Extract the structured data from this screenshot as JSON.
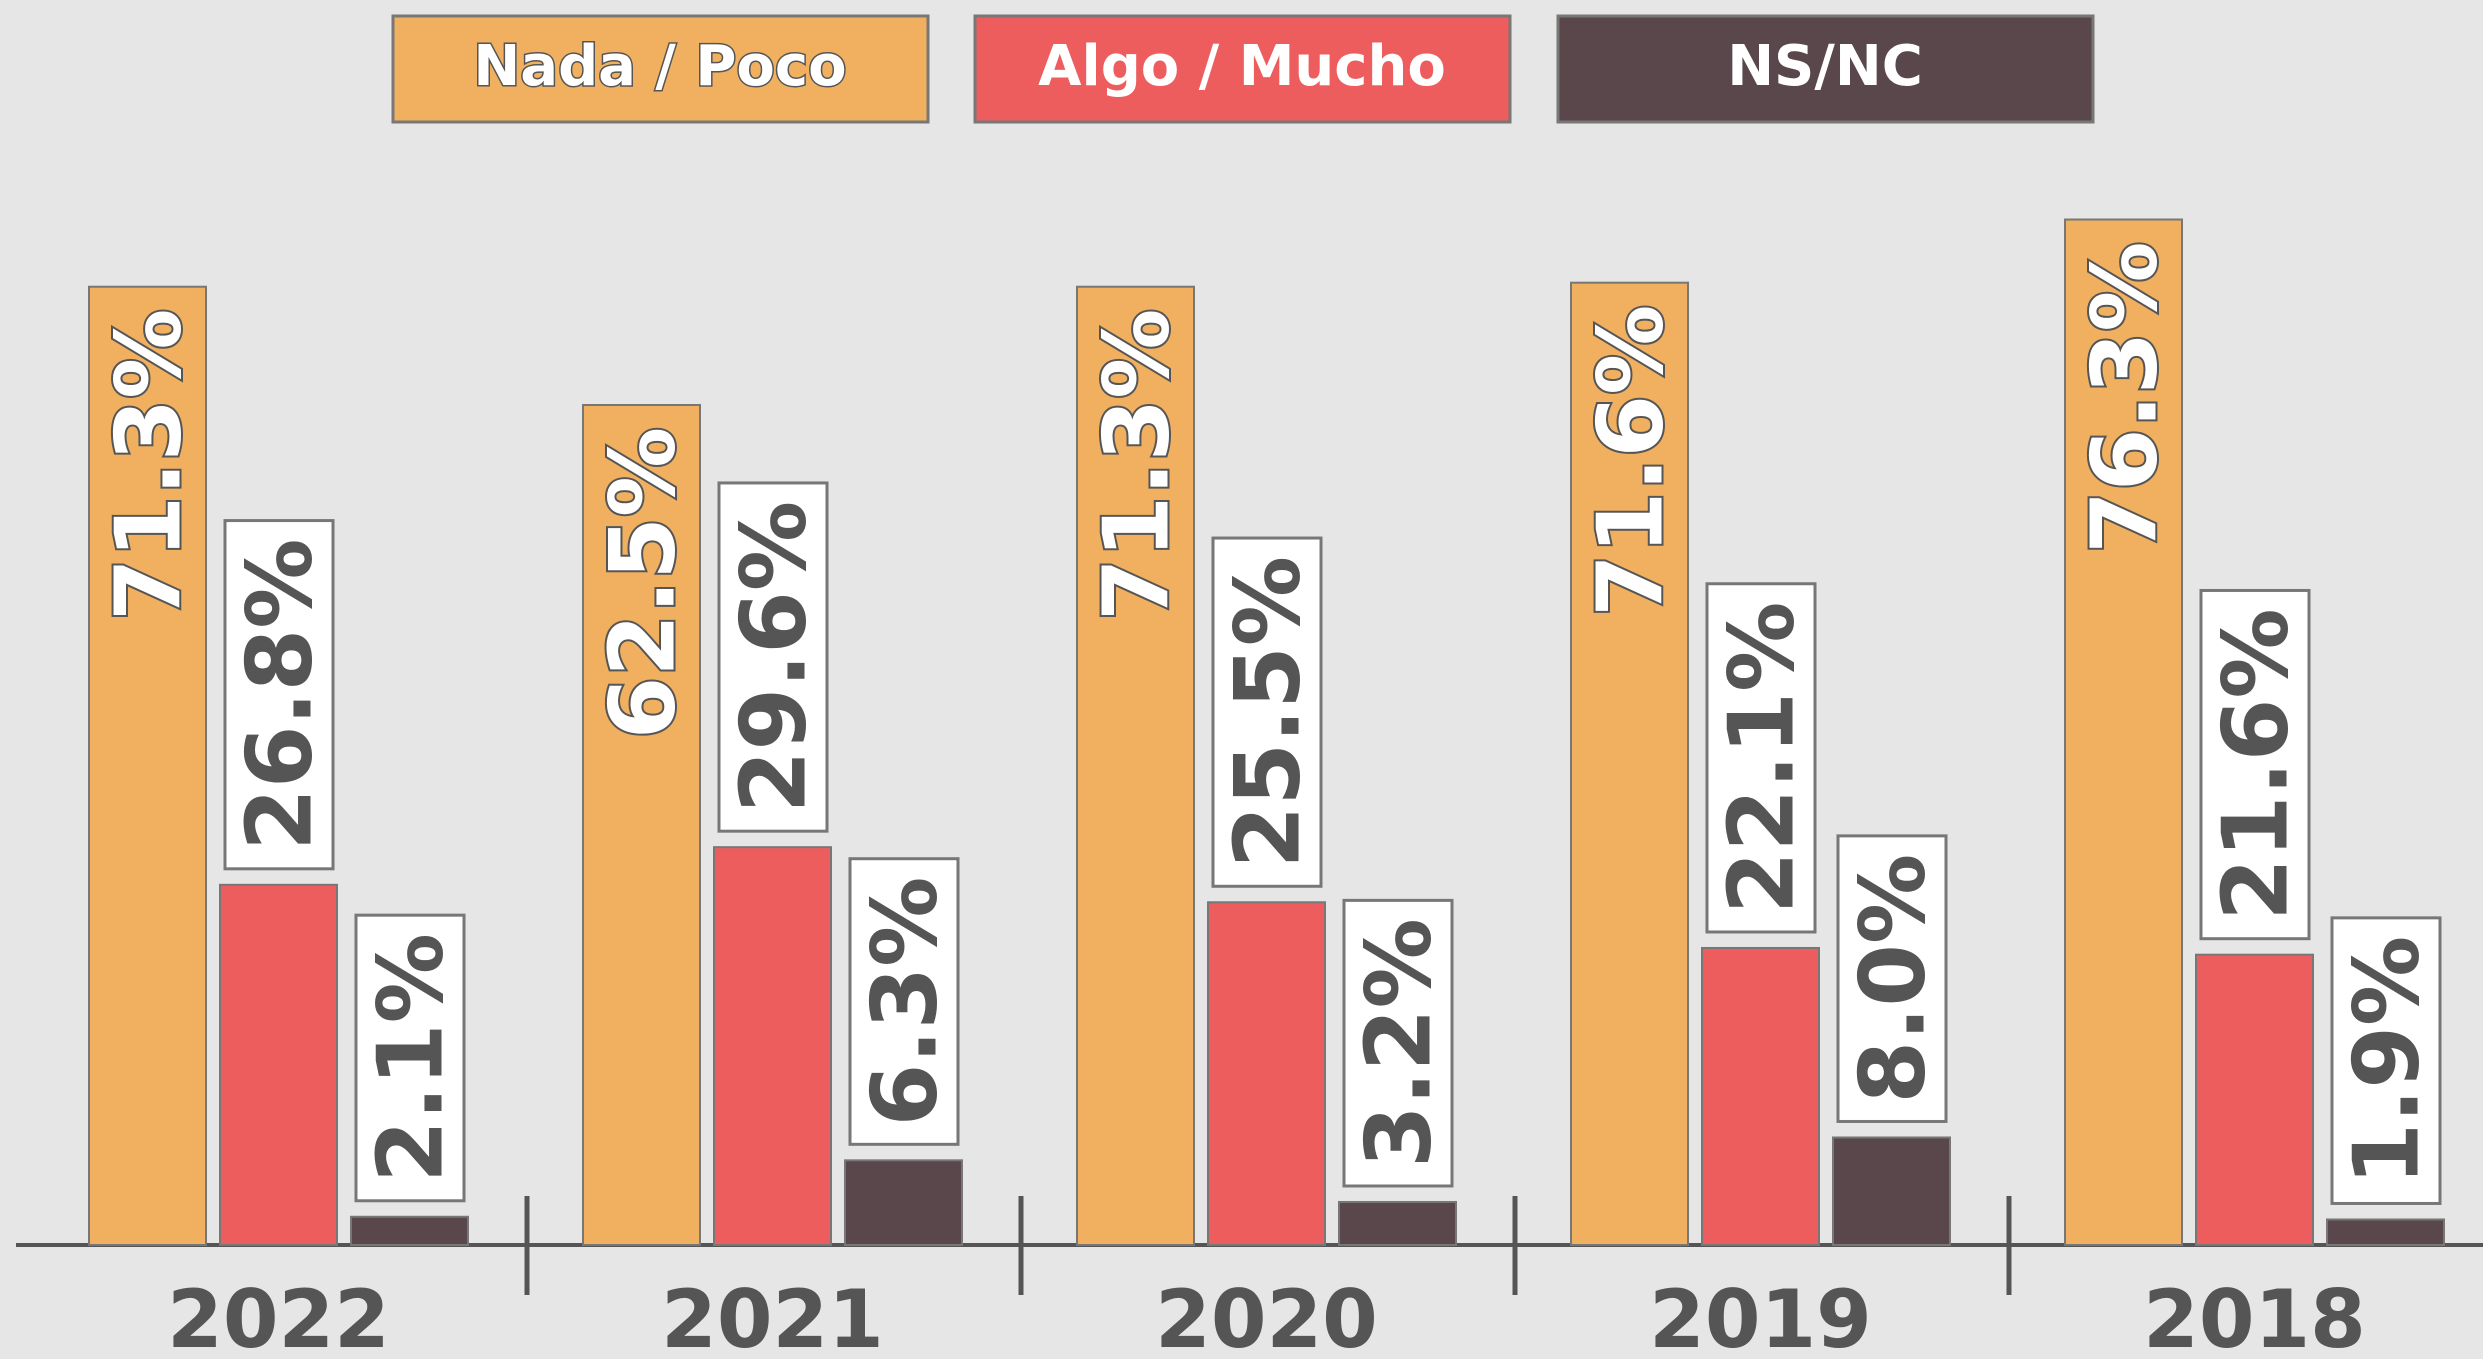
{
  "chart_data": {
    "type": "bar",
    "categories": [
      "2022",
      "2021",
      "2020",
      "2019",
      "2018"
    ],
    "series": [
      {
        "name": "Nada / Poco",
        "color": "#F0B05F",
        "values": [
          71.3,
          62.5,
          71.3,
          71.6,
          76.3
        ],
        "value_labels": [
          "71.3%",
          "62.5%",
          "71.3%",
          "71.6%",
          "76.3%"
        ]
      },
      {
        "name": "Algo / Mucho",
        "color": "#EE5D5E",
        "values": [
          26.8,
          29.6,
          25.5,
          22.1,
          21.6
        ],
        "value_labels": [
          "26.8%",
          "29.6%",
          "25.5%",
          "22.1%",
          "21.6%"
        ]
      },
      {
        "name": "NS/NC",
        "color": "#59474B",
        "values": [
          2.1,
          6.3,
          3.2,
          8.0,
          1.9
        ],
        "value_labels": [
          "2.1%",
          "6.3%",
          "3.2%",
          "8.0%",
          "1.9%"
        ]
      }
    ]
  }
}
